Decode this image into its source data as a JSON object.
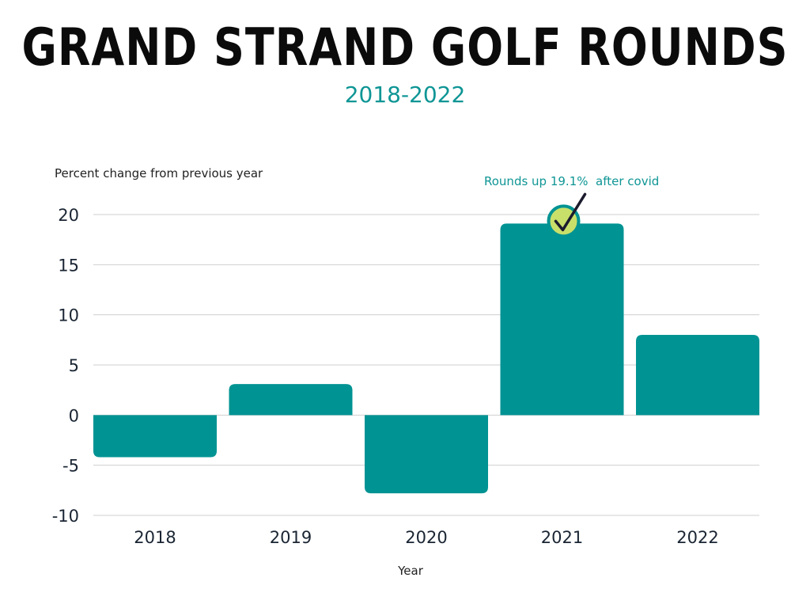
{
  "chart_data": {
    "type": "bar",
    "title": "GRAND STRAND GOLF ROUNDS",
    "subtitle": "2018-2022",
    "ylabel": "Percent change from previous year",
    "xlabel": "Year",
    "categories": [
      "2018",
      "2019",
      "2020",
      "2021",
      "2022"
    ],
    "values": [
      -4.2,
      3.1,
      -7.8,
      19.1,
      8.0
    ],
    "ylim": [
      -10,
      20
    ],
    "yticks": [
      -10,
      -5,
      0,
      5,
      10,
      15,
      20
    ],
    "grid": true,
    "legend": "none",
    "annotation": {
      "text": "Rounds up 19.1%  after covid",
      "category": "2021"
    },
    "colors": {
      "bar": "#009393",
      "annotation": "#0f9595",
      "marker": "#c8e06a",
      "grid": "#cfcfcf"
    }
  }
}
